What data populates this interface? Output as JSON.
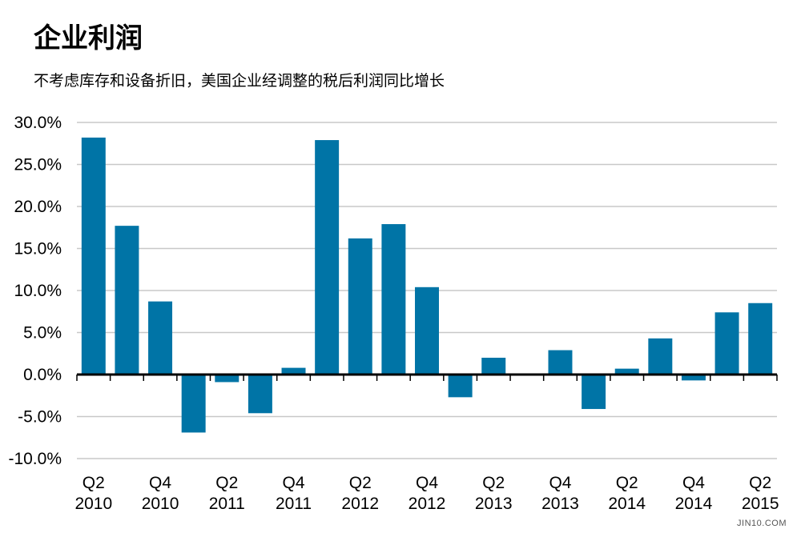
{
  "header": {
    "title": "企业利润",
    "subtitle": "不考虑库存和设备折旧，美国企业经调整的税后利润同比增长"
  },
  "watermark": "JIN10.COM",
  "chart_data": {
    "type": "bar",
    "title": "企业利润",
    "subtitle": "不考虑库存和设备折旧，美国企业经调整的税后利润同比增长",
    "xlabel": "",
    "ylabel": "",
    "ylim": [
      -10,
      30
    ],
    "ytick_step": 5,
    "ytick_labels": [
      "-10.0%",
      "-5.0%",
      "0.0%",
      "5.0%",
      "10.0%",
      "15.0%",
      "20.0%",
      "25.0%",
      "30.0%"
    ],
    "grid": true,
    "bar_color": "#0074a6",
    "categories": [
      "Q2 2010",
      "Q3 2010",
      "Q4 2010",
      "Q1 2011",
      "Q2 2011",
      "Q3 2011",
      "Q4 2011",
      "Q1 2012",
      "Q2 2012",
      "Q3 2012",
      "Q4 2012",
      "Q1 2013",
      "Q2 2013",
      "Q3 2013",
      "Q4 2013",
      "Q1 2014",
      "Q2 2014",
      "Q3 2014",
      "Q4 2014",
      "Q1 2015",
      "Q2 2015"
    ],
    "values": [
      28.2,
      17.7,
      8.7,
      -6.9,
      -0.9,
      -4.6,
      0.8,
      27.9,
      16.2,
      17.9,
      10.4,
      -2.7,
      2.0,
      0.0,
      2.9,
      -4.1,
      0.7,
      4.3,
      -0.7,
      7.4,
      8.5
    ],
    "xtick_labels": [
      {
        "index": 0,
        "quarter": "Q2",
        "year": "2010"
      },
      {
        "index": 2,
        "quarter": "Q4",
        "year": "2010"
      },
      {
        "index": 4,
        "quarter": "Q2",
        "year": "2011"
      },
      {
        "index": 6,
        "quarter": "Q4",
        "year": "2011"
      },
      {
        "index": 8,
        "quarter": "Q2",
        "year": "2012"
      },
      {
        "index": 10,
        "quarter": "Q4",
        "year": "2012"
      },
      {
        "index": 12,
        "quarter": "Q2",
        "year": "2013"
      },
      {
        "index": 14,
        "quarter": "Q4",
        "year": "2013"
      },
      {
        "index": 16,
        "quarter": "Q2",
        "year": "2014"
      },
      {
        "index": 18,
        "quarter": "Q4",
        "year": "2014"
      },
      {
        "index": 20,
        "quarter": "Q2",
        "year": "2015"
      }
    ]
  }
}
